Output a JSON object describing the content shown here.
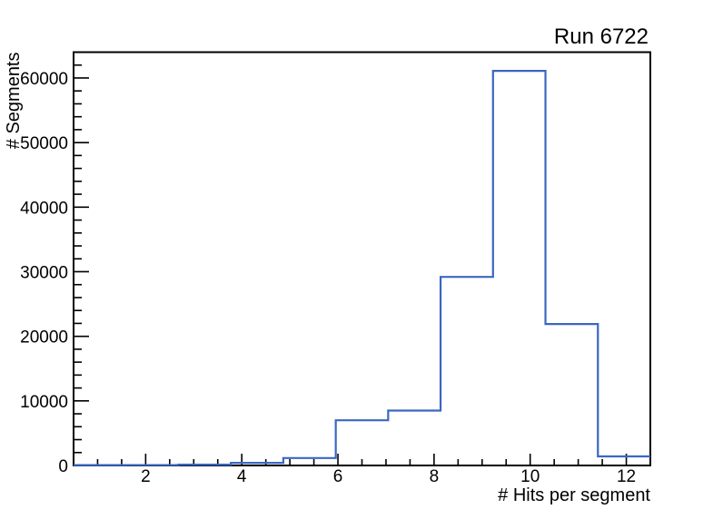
{
  "chart_data": {
    "type": "histogram-step",
    "title": "Run 6722",
    "xlabel": "# Hits per segment",
    "ylabel": "# Segments",
    "xlim": [
      0.5,
      12.5
    ],
    "ylim": [
      0,
      64000
    ],
    "n_bins": 11,
    "bin_edges": [
      0.5,
      1.591,
      2.682,
      3.773,
      4.864,
      5.955,
      7.045,
      8.136,
      9.227,
      10.318,
      11.409,
      12.5
    ],
    "values": [
      50,
      60,
      120,
      400,
      1150,
      7000,
      8500,
      29200,
      61100,
      21900,
      1400
    ],
    "x_ticks": [
      {
        "v": 2,
        "label": "2"
      },
      {
        "v": 4,
        "label": "4"
      },
      {
        "v": 6,
        "label": "6"
      },
      {
        "v": 8,
        "label": "8"
      },
      {
        "v": 10,
        "label": "10"
      },
      {
        "v": 12,
        "label": "12"
      }
    ],
    "x_minor_step": 0.5,
    "y_ticks": [
      {
        "v": 0,
        "label": "0"
      },
      {
        "v": 10000,
        "label": "10000"
      },
      {
        "v": 20000,
        "label": "20000"
      },
      {
        "v": 30000,
        "label": "30000"
      },
      {
        "v": 40000,
        "label": "40000"
      },
      {
        "v": 50000,
        "label": "50000"
      },
      {
        "v": 60000,
        "label": "60000"
      }
    ],
    "y_minor_step": 2000,
    "line_color": "#3a67c1",
    "axis_color": "#000000",
    "background_color": "#ffffff",
    "grid": false,
    "legend_position": "none",
    "title_position": "top-right"
  }
}
